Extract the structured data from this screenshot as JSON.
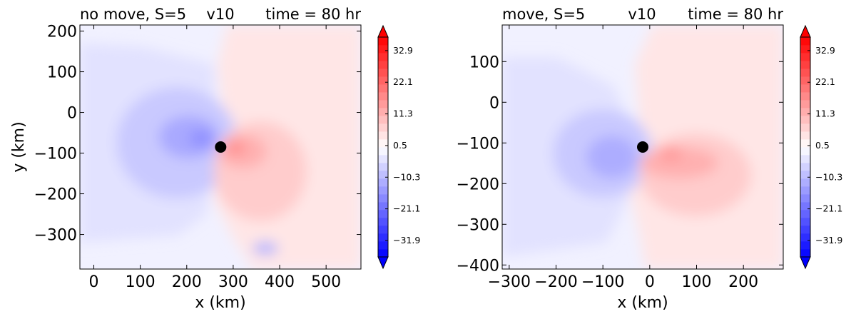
{
  "chart_data": [
    {
      "type": "heatmap",
      "title_left": "no move, S=5",
      "title_center": "v10",
      "title_right": "time = 80 hr",
      "title_left_color": "#ff0000",
      "title_center_color": "#000000",
      "title_right_color": "#0000ff",
      "xlabel": "x (km)",
      "ylabel": "y (km)",
      "xlim": [
        -30,
        575
      ],
      "ylim": [
        -385,
        215
      ],
      "xticks": [
        0,
        100,
        200,
        300,
        400,
        500
      ],
      "yticks": [
        200,
        100,
        0,
        -100,
        -200,
        -300
      ],
      "xtick_labels": [
        "0",
        "100",
        "200",
        "300",
        "400",
        "500"
      ],
      "ytick_labels": [
        "200",
        "100",
        "0",
        "−100",
        "−200",
        "−300"
      ],
      "center_marker": {
        "x": 273,
        "y": -85
      },
      "colorbar": {
        "colormap": "bwr",
        "range": [
          -37.5,
          37.5
        ],
        "extend": "both",
        "tick_values": [
          32.9,
          22.1,
          11.3,
          0.5,
          -10.3,
          -21.1,
          -31.9
        ],
        "tick_labels": [
          "32.9",
          "22.1",
          "11.3",
          "0.5",
          "−10.3",
          "−21.1",
          "−31.9"
        ]
      }
    },
    {
      "type": "heatmap",
      "title_left": "move, S=5",
      "title_center": "v10",
      "title_right": "time = 80 hr",
      "title_left_color": "#ff0000",
      "title_center_color": "#000000",
      "title_right_color": "#0000ff",
      "xlabel": "x (km)",
      "ylabel": "",
      "xlim": [
        -315,
        285
      ],
      "ylim": [
        -410,
        190
      ],
      "xticks": [
        -300,
        -200,
        -100,
        0,
        100,
        200
      ],
      "yticks": [
        100,
        0,
        -100,
        -200,
        -300,
        -400
      ],
      "xtick_labels": [
        "−300",
        "−200",
        "−100",
        "0",
        "100",
        "200"
      ],
      "ytick_labels": [
        "100",
        "0",
        "−100",
        "−200",
        "−300",
        "−400"
      ],
      "center_marker": {
        "x": -15,
        "y": -110
      },
      "colorbar": {
        "colormap": "bwr",
        "range": [
          -37.5,
          37.5
        ],
        "extend": "both",
        "tick_values": [
          32.9,
          22.1,
          11.3,
          0.5,
          -10.3,
          -21.1,
          -31.9
        ],
        "tick_labels": [
          "32.9",
          "22.1",
          "11.3",
          "0.5",
          "−10.3",
          "−21.1",
          "−31.9"
        ]
      }
    }
  ]
}
